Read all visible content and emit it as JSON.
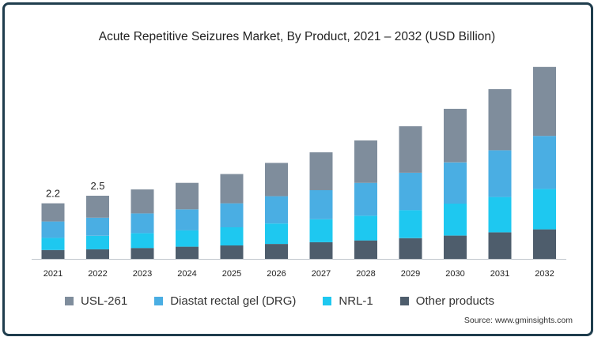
{
  "chart_data": {
    "type": "bar",
    "stacked": true,
    "title": "Acute Repetitive Seizures Market, By Product, 2021 – 2032 (USD Billion)",
    "categories": [
      "2021",
      "2022",
      "2023",
      "2024",
      "2025",
      "2026",
      "2027",
      "2028",
      "2029",
      "2030",
      "2031",
      "2032"
    ],
    "series": [
      {
        "name": "Other products",
        "color": "#4e5d6c",
        "values": [
          0.35,
          0.38,
          0.43,
          0.48,
          0.53,
          0.59,
          0.66,
          0.73,
          0.82,
          0.92,
          1.05,
          1.17
        ]
      },
      {
        "name": "NRL-1",
        "color": "#1ec8f0",
        "values": [
          0.48,
          0.53,
          0.59,
          0.65,
          0.72,
          0.81,
          0.91,
          0.98,
          1.11,
          1.27,
          1.4,
          1.6
        ]
      },
      {
        "name": "Diastat rectal gel (DRG)",
        "color": "#4aaee3",
        "values": [
          0.65,
          0.72,
          0.78,
          0.83,
          0.95,
          1.08,
          1.15,
          1.3,
          1.48,
          1.63,
          1.85,
          2.1
        ]
      },
      {
        "name": "USL-261",
        "color": "#7f8d9c",
        "values": [
          0.72,
          0.87,
          0.95,
          1.05,
          1.16,
          1.32,
          1.5,
          1.68,
          1.84,
          2.12,
          2.42,
          2.73
        ]
      }
    ],
    "data_labels": {
      "2021": "2.2",
      "2022": "2.5"
    },
    "y_axis_visible": false,
    "grid": false,
    "legend_position": "bottom"
  },
  "legend_order": [
    "USL-261",
    "Diastat rectal gel (DRG)",
    "NRL-1",
    "Other products"
  ],
  "source": "Source: www.gminsights.com"
}
